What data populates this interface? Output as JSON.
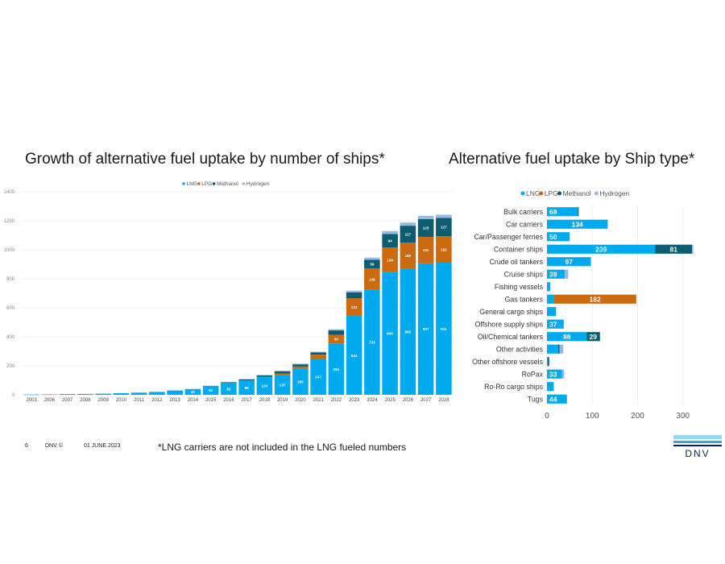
{
  "left_title": "Growth of alternative fuel uptake by number of ships*",
  "right_title": "Alternative fuel uptake by Ship type*",
  "footer": {
    "page": "6",
    "brand": "DNV ©",
    "date": "01 JUNE 2023"
  },
  "footnote": "*LNG carriers are not included in the LNG fueled numbers",
  "logo_text": "DNV",
  "colors": {
    "lng": "#00aaee",
    "lpg": "#cc6a10",
    "methanol": "#0c5d6f",
    "hydrogen": "#9ab8e4",
    "logo_dark": "#0f204b",
    "logo_light": "#99d9f0"
  },
  "chart_data": [
    {
      "type": "bar",
      "stacked": true,
      "title": "Growth of alternative fuel uptake by number of ships*",
      "legend": [
        "LNG",
        "LPG",
        "Methanol",
        "Hydrogen"
      ],
      "legend_position": "top-center",
      "ylim": [
        0,
        1400
      ],
      "yticks": [
        "0",
        "200",
        "400",
        "600",
        "800",
        "1000",
        "1200",
        "1400"
      ],
      "categories": [
        "2003",
        "2006",
        "2007",
        "2008",
        "2009",
        "2010",
        "2011",
        "2012",
        "2013",
        "2014",
        "2015",
        "2016",
        "2017",
        "2018",
        "2019",
        "2020",
        "2021",
        "2022",
        "2023",
        "2024",
        "2025",
        "2026",
        "2027",
        "2028"
      ],
      "series": [
        {
          "name": "LNG",
          "values": [
            2,
            3,
            5,
            6,
            8,
            11,
            15,
            20,
            30,
            40,
            62,
            82,
            99,
            124,
            137,
            180,
            247,
            354,
            544,
            723,
            846,
            869,
            907,
            911
          ]
        },
        {
          "name": "LPG",
          "values": [
            0,
            0,
            0,
            0,
            0,
            0,
            0,
            0,
            0,
            0,
            0,
            0,
            0,
            0,
            10,
            15,
            30,
            60,
            122,
            149,
            169,
            180,
            182,
            182
          ]
        },
        {
          "name": "Methanol",
          "values": [
            0,
            0,
            0,
            0,
            0,
            0,
            0,
            0,
            0,
            0,
            0,
            5,
            8,
            10,
            15,
            15,
            15,
            30,
            40,
            59,
            94,
            117,
            123,
            127
          ]
        },
        {
          "name": "Hydrogen",
          "values": [
            0,
            0,
            0,
            0,
            0,
            0,
            0,
            0,
            0,
            0,
            0,
            2,
            2,
            3,
            5,
            5,
            5,
            8,
            12,
            15,
            20,
            22,
            22,
            22
          ]
        }
      ],
      "data_labels": {
        "LNG": [
          "",
          "",
          "",
          "",
          "",
          "",
          "",
          "",
          "",
          "40",
          "62",
          "82",
          "99",
          "124",
          "137",
          "180",
          "247",
          "354",
          "544",
          "723",
          "846",
          "869",
          "907",
          "911"
        ],
        "LPG": [
          "",
          "",
          "",
          "",
          "",
          "",
          "",
          "",
          "",
          "",
          "",
          "",
          "",
          "",
          "",
          "",
          "",
          "60",
          "122",
          "149",
          "169",
          "180",
          "182",
          "182"
        ],
        "Methanol": [
          "",
          "",
          "",
          "",
          "",
          "",
          "",
          "",
          "",
          "",
          "",
          "",
          "",
          "",
          "",
          "",
          "",
          "",
          "",
          "59",
          "94",
          "117",
          "123",
          "127"
        ]
      }
    },
    {
      "type": "bar",
      "orientation": "horizontal",
      "stacked": true,
      "title": "Alternative fuel uptake by Ship type*",
      "legend": [
        "LNG",
        "LPG",
        "Methanol",
        "Hydrogen"
      ],
      "legend_position": "top-left",
      "xlim": [
        0,
        320
      ],
      "xticks": [
        "0",
        "100",
        "200",
        "300"
      ],
      "categories": [
        "Bulk carriers",
        "Car carriers",
        "Car/Passenger ferries",
        "Container ships",
        "Crude oil tankers",
        "Cruise ships",
        "Fishing vessels",
        "Gas tankers",
        "General cargo ships",
        "Offshore supply ships",
        "Oil/Chemical tankers",
        "Other activities",
        "Other offshore vessels",
        "RoPax",
        "Ro-Ro cargo ships",
        "Tugs"
      ],
      "series": [
        {
          "name": "LNG",
          "values": [
            68,
            134,
            50,
            239,
            97,
            39,
            7,
            15,
            20,
            37,
            88,
            25,
            2,
            33,
            15,
            44
          ]
        },
        {
          "name": "LPG",
          "values": [
            0,
            0,
            0,
            0,
            0,
            0,
            0,
            182,
            0,
            0,
            0,
            0,
            0,
            0,
            0,
            0
          ]
        },
        {
          "name": "Methanol",
          "values": [
            2,
            0,
            0,
            81,
            0,
            0,
            0,
            0,
            0,
            0,
            29,
            3,
            3,
            0,
            0,
            0
          ]
        },
        {
          "name": "Hydrogen",
          "values": [
            0,
            0,
            0,
            3,
            0,
            8,
            0,
            0,
            0,
            0,
            0,
            8,
            0,
            5,
            0,
            0
          ]
        }
      ],
      "data_labels": {
        "LNG": [
          "68",
          "134",
          "50",
          "239",
          "97",
          "39",
          "",
          "",
          "",
          "37",
          "88",
          "",
          "",
          "33",
          "",
          "44"
        ],
        "LPG": [
          "",
          "",
          "",
          "",
          "",
          "",
          "",
          "182",
          "",
          "",
          "",
          "",
          "",
          "",
          "",
          ""
        ],
        "Methanol": [
          "",
          "",
          "",
          "81",
          "",
          "",
          "",
          "",
          "",
          "",
          "29",
          "",
          "",
          "",
          "",
          ""
        ]
      }
    }
  ]
}
